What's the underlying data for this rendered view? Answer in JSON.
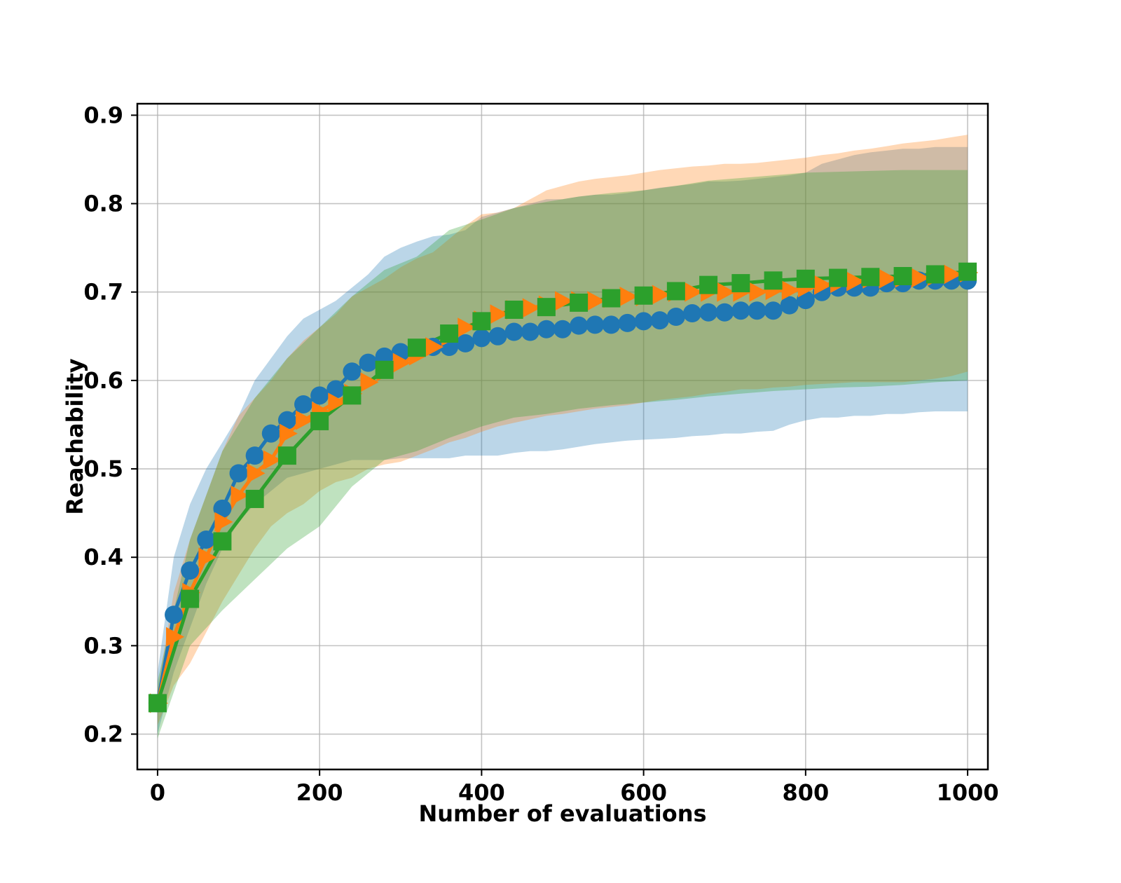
{
  "chart_data": {
    "type": "line",
    "title": "",
    "xlabel": "Number of evaluations",
    "ylabel": "Reachability",
    "xlim": [
      -25,
      1025
    ],
    "ylim": [
      0.16,
      0.913
    ],
    "xticks": [
      0,
      200,
      400,
      600,
      800,
      1000
    ],
    "yticks": [
      0.2,
      0.3,
      0.4,
      0.5,
      0.6,
      0.7,
      0.8,
      0.9
    ],
    "grid": true,
    "legend": "none",
    "series": [
      {
        "name": "blue",
        "color": "#1f77b4",
        "marker": "circle",
        "x": [
          0,
          20,
          40,
          60,
          80,
          100,
          120,
          140,
          160,
          180,
          200,
          220,
          240,
          260,
          280,
          300,
          320,
          340,
          360,
          380,
          400,
          420,
          440,
          460,
          480,
          500,
          520,
          540,
          560,
          580,
          600,
          620,
          640,
          660,
          680,
          700,
          720,
          740,
          760,
          780,
          800,
          820,
          840,
          860,
          880,
          900,
          920,
          940,
          960,
          980,
          1000
        ],
        "values": [
          0.235,
          0.335,
          0.385,
          0.42,
          0.455,
          0.495,
          0.515,
          0.54,
          0.555,
          0.573,
          0.583,
          0.59,
          0.61,
          0.62,
          0.627,
          0.632,
          0.635,
          0.638,
          0.638,
          0.642,
          0.648,
          0.65,
          0.655,
          0.655,
          0.658,
          0.658,
          0.662,
          0.663,
          0.663,
          0.665,
          0.667,
          0.668,
          0.672,
          0.676,
          0.677,
          0.677,
          0.679,
          0.679,
          0.679,
          0.685,
          0.691,
          0.7,
          0.705,
          0.705,
          0.705,
          0.71,
          0.71,
          0.713,
          0.713,
          0.713,
          0.713
        ],
        "lower": [
          0.2,
          0.27,
          0.32,
          0.37,
          0.41,
          0.44,
          0.46,
          0.475,
          0.49,
          0.495,
          0.5,
          0.505,
          0.51,
          0.51,
          0.51,
          0.512,
          0.512,
          0.512,
          0.512,
          0.515,
          0.515,
          0.515,
          0.518,
          0.52,
          0.52,
          0.522,
          0.525,
          0.528,
          0.53,
          0.532,
          0.533,
          0.534,
          0.535,
          0.537,
          0.538,
          0.54,
          0.54,
          0.542,
          0.543,
          0.55,
          0.555,
          0.558,
          0.558,
          0.56,
          0.56,
          0.562,
          0.562,
          0.564,
          0.565,
          0.565,
          0.565
        ],
        "upper": [
          0.27,
          0.4,
          0.46,
          0.5,
          0.53,
          0.56,
          0.6,
          0.625,
          0.65,
          0.67,
          0.68,
          0.69,
          0.705,
          0.72,
          0.74,
          0.75,
          0.757,
          0.763,
          0.765,
          0.77,
          0.785,
          0.79,
          0.795,
          0.8,
          0.805,
          0.805,
          0.808,
          0.81,
          0.81,
          0.812,
          0.815,
          0.818,
          0.82,
          0.822,
          0.825,
          0.825,
          0.826,
          0.828,
          0.83,
          0.832,
          0.835,
          0.845,
          0.85,
          0.855,
          0.858,
          0.86,
          0.862,
          0.862,
          0.864,
          0.864,
          0.864
        ]
      },
      {
        "name": "orange",
        "color": "#ff7f0e",
        "marker": "triangle-right",
        "x": [
          0,
          20,
          40,
          60,
          80,
          100,
          120,
          140,
          160,
          180,
          200,
          220,
          240,
          260,
          280,
          300,
          320,
          340,
          360,
          380,
          400,
          420,
          440,
          460,
          480,
          500,
          520,
          540,
          560,
          580,
          600,
          620,
          640,
          660,
          680,
          700,
          720,
          740,
          760,
          780,
          800,
          820,
          840,
          860,
          880,
          900,
          920,
          940,
          960,
          980,
          1000
        ],
        "values": [
          0.235,
          0.31,
          0.36,
          0.4,
          0.44,
          0.47,
          0.495,
          0.51,
          0.54,
          0.555,
          0.565,
          0.575,
          0.585,
          0.598,
          0.61,
          0.62,
          0.628,
          0.638,
          0.65,
          0.66,
          0.668,
          0.675,
          0.68,
          0.682,
          0.685,
          0.69,
          0.69,
          0.69,
          0.693,
          0.695,
          0.695,
          0.697,
          0.7,
          0.7,
          0.7,
          0.7,
          0.7,
          0.7,
          0.702,
          0.702,
          0.705,
          0.708,
          0.71,
          0.712,
          0.715,
          0.715,
          0.716,
          0.716,
          0.718,
          0.72,
          0.722
        ],
        "lower": [
          0.21,
          0.255,
          0.28,
          0.315,
          0.35,
          0.38,
          0.41,
          0.435,
          0.45,
          0.46,
          0.475,
          0.485,
          0.49,
          0.5,
          0.505,
          0.508,
          0.515,
          0.522,
          0.53,
          0.535,
          0.542,
          0.548,
          0.552,
          0.556,
          0.56,
          0.562,
          0.565,
          0.568,
          0.57,
          0.572,
          0.575,
          0.578,
          0.58,
          0.582,
          0.585,
          0.587,
          0.59,
          0.59,
          0.592,
          0.593,
          0.595,
          0.596,
          0.597,
          0.598,
          0.598,
          0.598,
          0.598,
          0.6,
          0.602,
          0.605,
          0.61
        ],
        "upper": [
          0.25,
          0.36,
          0.42,
          0.47,
          0.52,
          0.56,
          0.58,
          0.6,
          0.625,
          0.645,
          0.66,
          0.675,
          0.695,
          0.705,
          0.715,
          0.728,
          0.738,
          0.745,
          0.76,
          0.775,
          0.788,
          0.79,
          0.795,
          0.805,
          0.815,
          0.82,
          0.825,
          0.828,
          0.83,
          0.832,
          0.835,
          0.838,
          0.84,
          0.842,
          0.843,
          0.845,
          0.845,
          0.846,
          0.848,
          0.85,
          0.852,
          0.855,
          0.857,
          0.86,
          0.862,
          0.865,
          0.868,
          0.87,
          0.872,
          0.875,
          0.878
        ]
      },
      {
        "name": "green",
        "color": "#2ca02c",
        "marker": "square",
        "x": [
          0,
          40,
          80,
          120,
          160,
          200,
          240,
          280,
          320,
          360,
          400,
          440,
          480,
          520,
          560,
          600,
          640,
          680,
          720,
          760,
          800,
          840,
          880,
          920,
          960,
          1000
        ],
        "values": [
          0.235,
          0.353,
          0.418,
          0.466,
          0.515,
          0.554,
          0.583,
          0.612,
          0.637,
          0.653,
          0.667,
          0.68,
          0.683,
          0.688,
          0.693,
          0.696,
          0.701,
          0.708,
          0.71,
          0.713,
          0.715,
          0.716,
          0.717,
          0.718,
          0.72,
          0.723
        ],
        "lower": [
          0.195,
          0.3,
          0.34,
          0.375,
          0.41,
          0.435,
          0.48,
          0.51,
          0.52,
          0.535,
          0.548,
          0.558,
          0.562,
          0.568,
          0.572,
          0.575,
          0.578,
          0.582,
          0.585,
          0.588,
          0.59,
          0.592,
          0.593,
          0.595,
          0.598,
          0.6
        ],
        "upper": [
          0.26,
          0.42,
          0.52,
          0.58,
          0.625,
          0.66,
          0.695,
          0.725,
          0.74,
          0.77,
          0.782,
          0.795,
          0.802,
          0.808,
          0.812,
          0.815,
          0.82,
          0.826,
          0.829,
          0.832,
          0.835,
          0.836,
          0.837,
          0.838,
          0.838,
          0.838
        ]
      }
    ]
  }
}
